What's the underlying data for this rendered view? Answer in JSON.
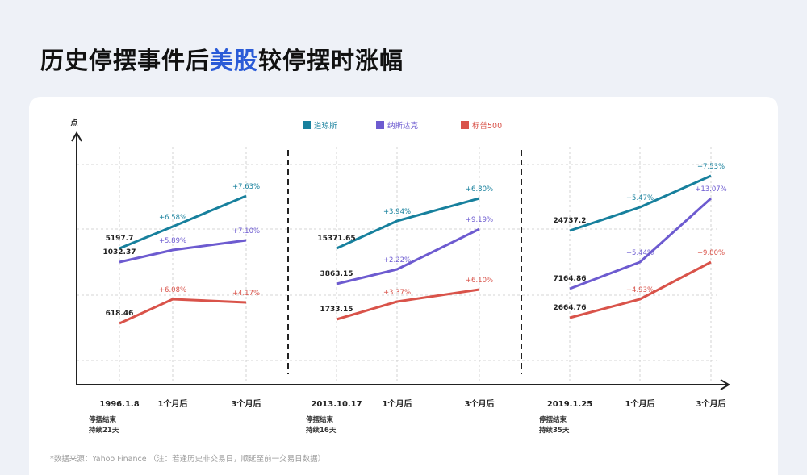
{
  "header": {
    "title_pre": "历史停摆事件后",
    "title_highlight": "美股",
    "title_post": "较停摆时涨幅"
  },
  "footnote": "*数据来源：Yahoo Finance （注：若逢历史非交易日，顺延至前一交易日数据）",
  "colors": {
    "dow": "#17809d",
    "nasdaq": "#6d5bd0",
    "sp500": "#d9534a",
    "highlight": "#2a5bd7"
  },
  "chart_data": {
    "type": "line",
    "yaxis_label": "点",
    "grid": true,
    "legend_position": "top-center",
    "legend": [
      {
        "key": "dow",
        "name": "道琼斯"
      },
      {
        "key": "nasdaq",
        "name": "纳斯达克"
      },
      {
        "key": "sp500",
        "name": "标普500"
      }
    ],
    "panels": [
      {
        "categories": [
          "1996.1.8",
          "1个月后",
          "3个月后"
        ],
        "note": [
          "停摆结束",
          "持续21天"
        ],
        "series": {
          "dow": {
            "base": "5197.7",
            "changes": [
              "+6.58%",
              "+7.63%"
            ]
          },
          "nasdaq": {
            "base": "1032.37",
            "changes": [
              "+5.89%",
              "+7.10%"
            ]
          },
          "sp500": {
            "base": "618.46",
            "changes": [
              "+6.08%",
              "+4.17%"
            ]
          }
        }
      },
      {
        "categories": [
          "2013.10.17",
          "1个月后",
          "3个月后"
        ],
        "note": [
          "停摆结束",
          "持续16天"
        ],
        "series": {
          "dow": {
            "base": "15371.65",
            "changes": [
              "+3.94%",
              "+6.80%"
            ]
          },
          "nasdaq": {
            "base": "3863.15",
            "changes": [
              "+2.22%",
              "+9.19%"
            ]
          },
          "sp500": {
            "base": "1733.15",
            "changes": [
              "+3.37%",
              "+6.10%"
            ]
          }
        }
      },
      {
        "categories": [
          "2019.1.25",
          "1个月后",
          "3个月后"
        ],
        "note": [
          "停摆结束",
          "持续35天"
        ],
        "series": {
          "dow": {
            "base": "24737.2",
            "changes": [
              "+5.47%",
              "+7.53%"
            ]
          },
          "nasdaq": {
            "base": "7164.86",
            "changes": [
              "+5.44%",
              "+13.07%"
            ]
          },
          "sp500": {
            "base": "2664.76",
            "changes": [
              "+4.93%",
              "+9.80%"
            ]
          }
        }
      }
    ]
  }
}
